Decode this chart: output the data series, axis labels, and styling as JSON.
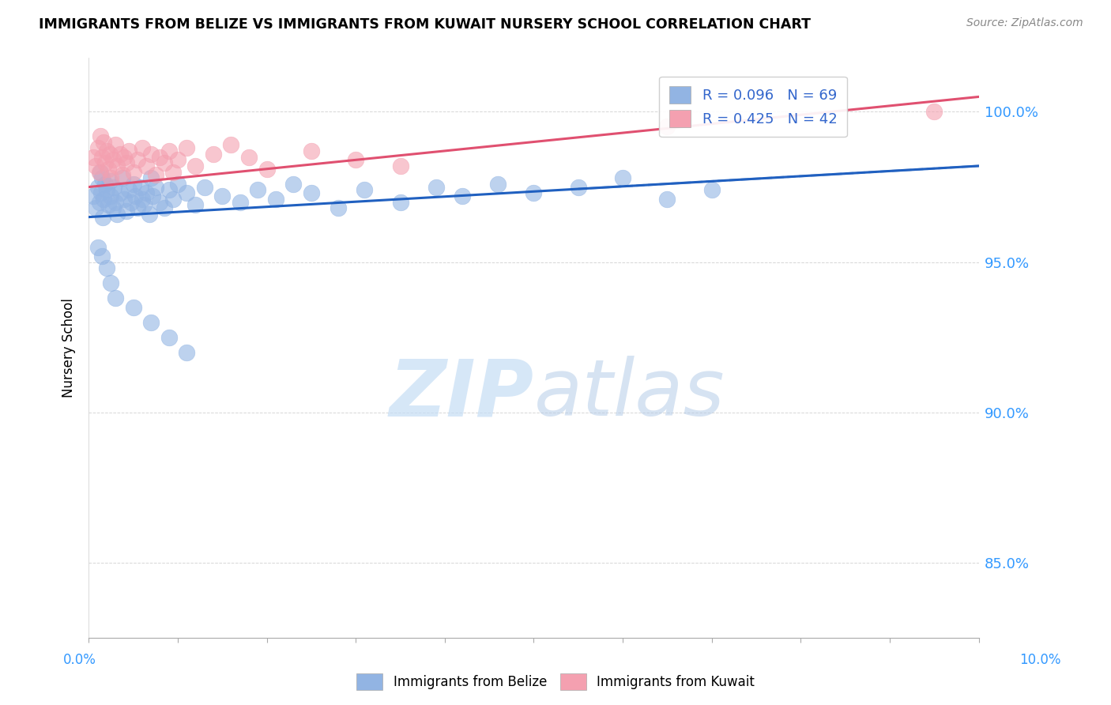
{
  "title": "IMMIGRANTS FROM BELIZE VS IMMIGRANTS FROM KUWAIT NURSERY SCHOOL CORRELATION CHART",
  "source": "Source: ZipAtlas.com",
  "ylabel": "Nursery School",
  "xlim": [
    0.0,
    10.0
  ],
  "ylim": [
    82.5,
    101.8
  ],
  "yticks": [
    85.0,
    90.0,
    95.0,
    100.0
  ],
  "ytick_labels": [
    "85.0%",
    "90.0%",
    "95.0%",
    "100.0%"
  ],
  "belize_color": "#92b4e3",
  "kuwait_color": "#f4a0b0",
  "belize_line_color": "#2060c0",
  "kuwait_line_color": "#e05070",
  "R_belize": 0.096,
  "N_belize": 69,
  "R_kuwait": 0.425,
  "N_kuwait": 42,
  "belize_scatter_x": [
    0.05,
    0.08,
    0.1,
    0.12,
    0.13,
    0.14,
    0.15,
    0.16,
    0.17,
    0.18,
    0.2,
    0.22,
    0.24,
    0.25,
    0.27,
    0.28,
    0.3,
    0.32,
    0.35,
    0.38,
    0.4,
    0.42,
    0.45,
    0.48,
    0.5,
    0.52,
    0.55,
    0.58,
    0.6,
    0.62,
    0.65,
    0.68,
    0.7,
    0.72,
    0.75,
    0.8,
    0.85,
    0.9,
    0.95,
    1.0,
    1.1,
    1.2,
    1.3,
    1.5,
    1.7,
    1.9,
    2.1,
    2.3,
    2.5,
    2.8,
    3.1,
    3.5,
    3.9,
    4.2,
    4.6,
    5.0,
    5.5,
    6.0,
    6.5,
    7.0,
    0.1,
    0.15,
    0.2,
    0.25,
    0.3,
    0.5,
    0.7,
    0.9,
    1.1
  ],
  "belize_scatter_y": [
    97.2,
    96.8,
    97.5,
    97.0,
    98.0,
    97.3,
    97.8,
    96.5,
    97.1,
    97.6,
    97.4,
    96.9,
    97.7,
    97.2,
    96.8,
    97.5,
    97.0,
    96.6,
    97.3,
    97.8,
    97.1,
    96.7,
    97.4,
    97.0,
    97.6,
    97.2,
    96.8,
    97.5,
    97.1,
    96.9,
    97.3,
    96.6,
    97.8,
    97.2,
    97.5,
    97.0,
    96.8,
    97.4,
    97.1,
    97.6,
    97.3,
    96.9,
    97.5,
    97.2,
    97.0,
    97.4,
    97.1,
    97.6,
    97.3,
    96.8,
    97.4,
    97.0,
    97.5,
    97.2,
    97.6,
    97.3,
    97.5,
    97.8,
    97.1,
    97.4,
    95.5,
    95.2,
    94.8,
    94.3,
    93.8,
    93.5,
    93.0,
    92.5,
    92.0
  ],
  "kuwait_scatter_x": [
    0.05,
    0.08,
    0.1,
    0.12,
    0.13,
    0.15,
    0.17,
    0.18,
    0.2,
    0.22,
    0.24,
    0.25,
    0.27,
    0.3,
    0.32,
    0.35,
    0.38,
    0.4,
    0.42,
    0.45,
    0.5,
    0.55,
    0.6,
    0.65,
    0.7,
    0.75,
    0.8,
    0.85,
    0.9,
    0.95,
    1.0,
    1.1,
    1.2,
    1.4,
    1.6,
    1.8,
    2.0,
    2.5,
    3.0,
    3.5,
    6.5,
    9.5
  ],
  "kuwait_scatter_y": [
    98.5,
    98.2,
    98.8,
    98.0,
    99.2,
    98.5,
    99.0,
    98.3,
    98.7,
    98.1,
    98.6,
    97.8,
    98.4,
    98.9,
    98.2,
    98.6,
    97.9,
    98.5,
    98.3,
    98.7,
    98.0,
    98.4,
    98.8,
    98.2,
    98.6,
    97.9,
    98.5,
    98.3,
    98.7,
    98.0,
    98.4,
    98.8,
    98.2,
    98.6,
    98.9,
    98.5,
    98.1,
    98.7,
    98.4,
    98.2,
    99.5,
    100.0
  ],
  "belize_trend": [
    96.5,
    98.2
  ],
  "kuwait_trend": [
    97.5,
    100.5
  ],
  "belize_dash_start_x": 5.5,
  "belize_dash_end_x": 10.0,
  "background_color": "#ffffff",
  "grid_color": "#bbbbbb",
  "watermark_zip": "ZIP",
  "watermark_atlas": "atlas"
}
